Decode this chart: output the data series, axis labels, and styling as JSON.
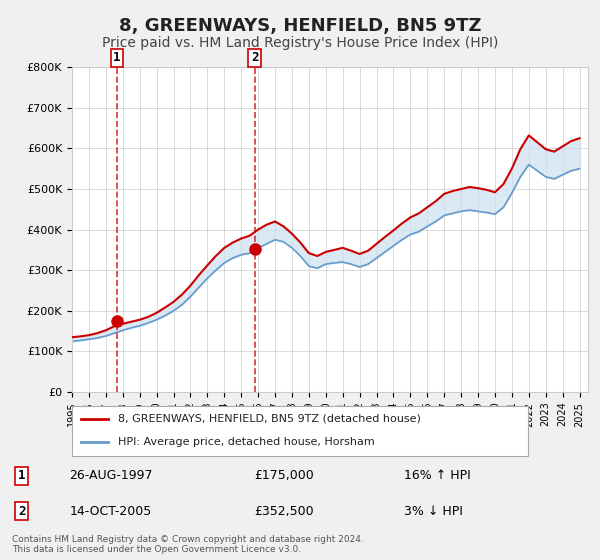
{
  "title": "8, GREENWAYS, HENFIELD, BN5 9TZ",
  "subtitle": "Price paid vs. HM Land Registry's House Price Index (HPI)",
  "title_fontsize": 13,
  "subtitle_fontsize": 10,
  "ylabel": "",
  "ylim": [
    0,
    800000
  ],
  "yticks": [
    0,
    100000,
    200000,
    300000,
    400000,
    500000,
    600000,
    700000,
    800000
  ],
  "ytick_labels": [
    "£0",
    "£100K",
    "£200K",
    "£300K",
    "£400K",
    "£500K",
    "£600K",
    "£700K",
    "£800K"
  ],
  "xlim_start": 1995.0,
  "xlim_end": 2025.5,
  "sale1_x": 1997.647,
  "sale1_y": 175000,
  "sale1_label": "1",
  "sale1_date": "26-AUG-1997",
  "sale1_price": "£175,000",
  "sale1_hpi": "16% ↑ HPI",
  "sale2_x": 2005.789,
  "sale2_y": 352500,
  "sale2_label": "2",
  "sale2_date": "14-OCT-2005",
  "sale2_price": "£352,500",
  "sale2_hpi": "3% ↓ HPI",
  "line_red_color": "#cc0000",
  "line_blue_color": "#6699cc",
  "fill_color": "#cce0f0",
  "dashed_color": "#cc0000",
  "legend_label_red": "8, GREENWAYS, HENFIELD, BN5 9TZ (detached house)",
  "legend_label_blue": "HPI: Average price, detached house, Horsham",
  "footnote": "Contains HM Land Registry data © Crown copyright and database right 2024.\nThis data is licensed under the Open Government Licence v3.0.",
  "background_color": "#f0f0f0",
  "plot_bg_color": "#ffffff",
  "hpi_years": [
    1995,
    1995.5,
    1996,
    1996.5,
    1997,
    1997.5,
    1998,
    1998.5,
    1999,
    1999.5,
    2000,
    2000.5,
    2001,
    2001.5,
    2002,
    2002.5,
    2003,
    2003.5,
    2004,
    2004.5,
    2005,
    2005.5,
    2006,
    2006.5,
    2007,
    2007.5,
    2008,
    2008.5,
    2009,
    2009.5,
    2010,
    2010.5,
    2011,
    2011.5,
    2012,
    2012.5,
    2013,
    2013.5,
    2014,
    2014.5,
    2015,
    2015.5,
    2016,
    2016.5,
    2017,
    2017.5,
    2018,
    2018.5,
    2019,
    2019.5,
    2020,
    2020.5,
    2021,
    2021.5,
    2022,
    2022.5,
    2023,
    2023.5,
    2024,
    2024.5,
    2025
  ],
  "hpi_values": [
    125000,
    127000,
    130000,
    133000,
    138000,
    145000,
    152000,
    158000,
    163000,
    170000,
    178000,
    188000,
    200000,
    215000,
    235000,
    258000,
    280000,
    300000,
    318000,
    330000,
    338000,
    342000,
    355000,
    365000,
    375000,
    370000,
    355000,
    335000,
    310000,
    305000,
    315000,
    318000,
    320000,
    315000,
    308000,
    315000,
    330000,
    345000,
    360000,
    375000,
    388000,
    395000,
    408000,
    420000,
    435000,
    440000,
    445000,
    448000,
    445000,
    442000,
    438000,
    455000,
    490000,
    530000,
    560000,
    545000,
    530000,
    525000,
    535000,
    545000,
    550000
  ],
  "red_years": [
    1995,
    1995.5,
    1996,
    1996.5,
    1997,
    1997.5,
    1998,
    1998.5,
    1999,
    1999.5,
    2000,
    2000.5,
    2001,
    2001.5,
    2002,
    2002.5,
    2003,
    2003.5,
    2004,
    2004.5,
    2005,
    2005.5,
    2006,
    2006.5,
    2007,
    2007.5,
    2008,
    2008.5,
    2009,
    2009.5,
    2010,
    2010.5,
    2011,
    2011.5,
    2012,
    2012.5,
    2013,
    2013.5,
    2014,
    2014.5,
    2015,
    2015.5,
    2016,
    2016.5,
    2017,
    2017.5,
    2018,
    2018.5,
    2019,
    2019.5,
    2020,
    2020.5,
    2021,
    2021.5,
    2022,
    2022.5,
    2023,
    2023.5,
    2024,
    2024.5,
    2025
  ],
  "red_values": [
    135000,
    137000,
    140000,
    145000,
    152000,
    162000,
    168000,
    173000,
    178000,
    185000,
    195000,
    208000,
    222000,
    240000,
    262000,
    288000,
    312000,
    335000,
    355000,
    368000,
    378000,
    385000,
    400000,
    412000,
    420000,
    408000,
    390000,
    368000,
    342000,
    335000,
    345000,
    350000,
    355000,
    348000,
    340000,
    348000,
    365000,
    382000,
    398000,
    415000,
    430000,
    440000,
    455000,
    470000,
    488000,
    495000,
    500000,
    505000,
    502000,
    498000,
    492000,
    512000,
    550000,
    598000,
    632000,
    615000,
    598000,
    592000,
    605000,
    618000,
    625000
  ]
}
